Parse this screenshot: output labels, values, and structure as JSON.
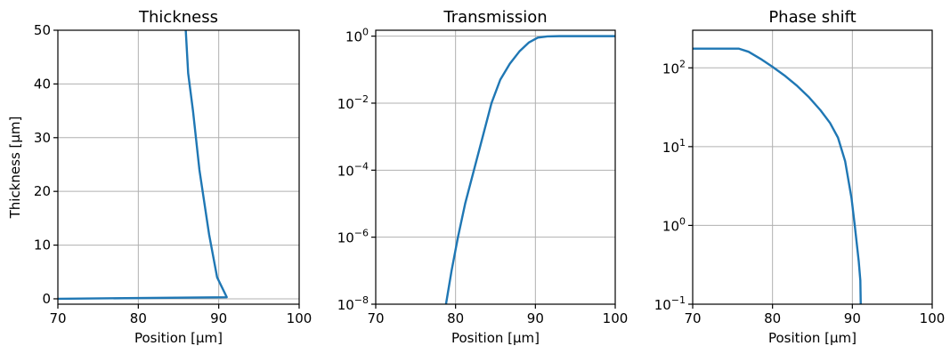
{
  "figure": {
    "line_color": "#1f77b4",
    "grid": true
  },
  "chart_data": [
    {
      "type": "line",
      "title": "Thickness",
      "xlabel": "Position [µm]",
      "ylabel": "Thickness [µm]",
      "xlim": [
        70,
        100
      ],
      "ylim": [
        -1,
        50
      ],
      "yscale": "linear",
      "xticks": [
        70,
        80,
        90,
        100
      ],
      "yticks": [
        0,
        10,
        20,
        30,
        40,
        50
      ],
      "grid": true,
      "series": [
        {
          "x": [
            70,
            91,
            89.8,
            88.8,
            87.6,
            86.8,
            86.2,
            85.9
          ],
          "y": [
            0,
            0.3,
            4,
            12,
            24,
            35,
            42,
            50
          ]
        }
      ]
    },
    {
      "type": "line",
      "title": "Transmission",
      "xlabel": "Position [µm]",
      "ylabel": "",
      "xlim": [
        70,
        100
      ],
      "ylim": [
        1e-08,
        1.5
      ],
      "yscale": "log",
      "xticks": [
        70,
        80,
        90,
        100
      ],
      "yticks": [
        1e-08,
        1e-06,
        0.0001,
        0.01,
        1
      ],
      "grid": true,
      "series": [
        {
          "x": [
            78.8,
            79.5,
            80.3,
            81.2,
            82.3,
            83.4,
            84.5,
            85.6,
            86.8,
            88,
            89.2,
            90.3,
            91.5,
            93,
            100
          ],
          "y": [
            1e-08,
            1e-07,
            1e-06,
            1e-05,
            0.0001,
            0.001,
            0.01,
            0.05,
            0.15,
            0.35,
            0.65,
            0.9,
            0.98,
            1.0,
            1.0
          ]
        }
      ]
    },
    {
      "type": "line",
      "title": "Phase shift",
      "xlabel": "Position [µm]",
      "ylabel": "",
      "xlim": [
        70,
        100
      ],
      "ylim": [
        0.1,
        300
      ],
      "yscale": "log",
      "xticks": [
        70,
        80,
        90,
        100
      ],
      "yticks": [
        0.1,
        1,
        10,
        100
      ],
      "grid": true,
      "series": [
        {
          "x": [
            70,
            73,
            75.8,
            77,
            78.5,
            80,
            81.5,
            83,
            84.5,
            86,
            87.2,
            88.2,
            89.1,
            89.9,
            90.3,
            90.8,
            91,
            91.05
          ],
          "y": [
            175,
            175,
            175,
            160,
            130,
            103,
            80,
            60,
            43,
            29,
            20,
            13,
            6.5,
            2.2,
            1.0,
            0.35,
            0.2,
            0.1
          ]
        }
      ]
    }
  ]
}
